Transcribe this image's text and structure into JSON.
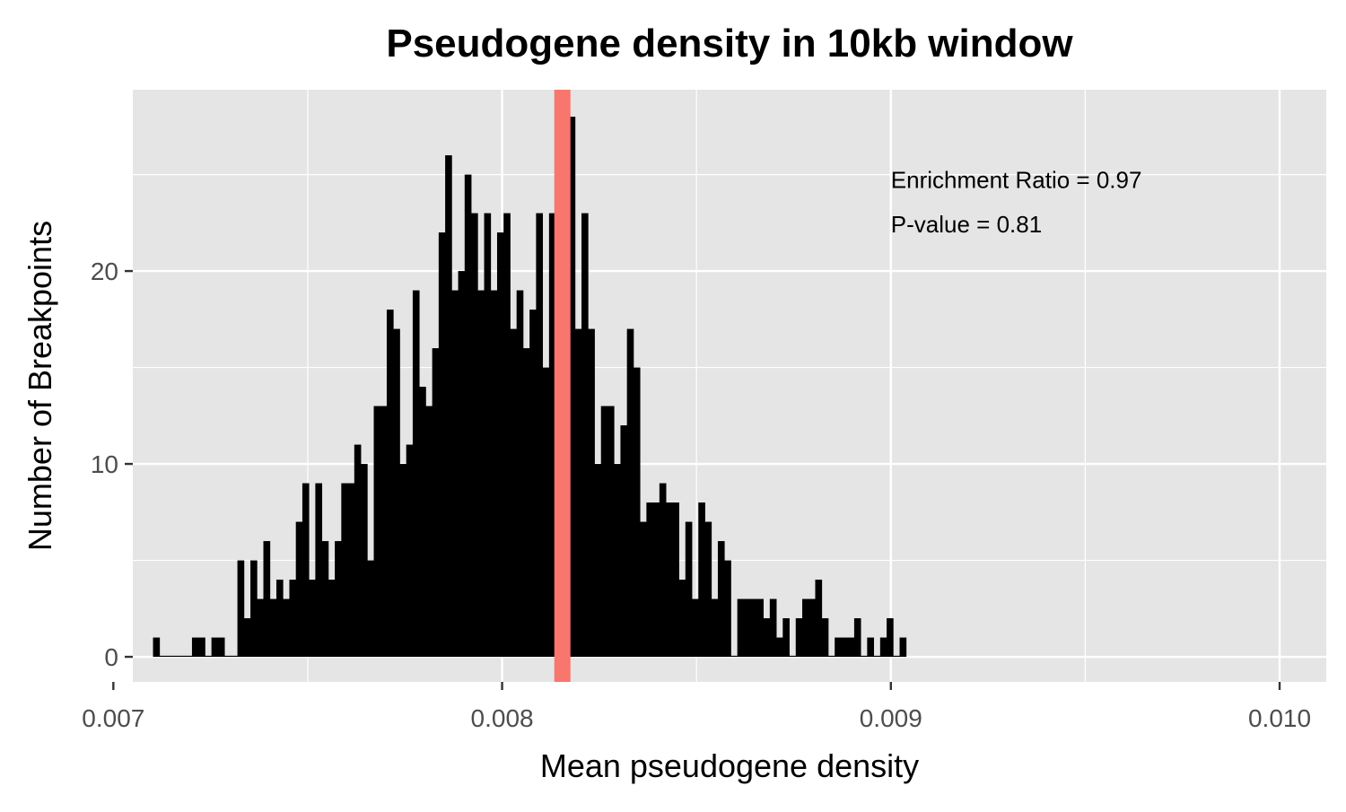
{
  "chart_data": {
    "type": "bar",
    "title": "Pseudogene density in 10kb window",
    "xlabel": "Mean pseudogene density",
    "ylabel": "Number of Breakpoints",
    "xlim": [
      0.00705,
      0.01012
    ],
    "ylim": [
      -1.3,
      29.4
    ],
    "x_ticks": [
      0.007,
      0.008,
      0.009,
      0.01
    ],
    "x_tick_labels": [
      "0.007",
      "0.008",
      "0.009",
      "0.010"
    ],
    "y_ticks": [
      0,
      10,
      20
    ],
    "y_tick_labels": [
      "0",
      "10",
      "20"
    ],
    "grid": true,
    "bin_start": 0.007102,
    "bin_width": 1.67e-05,
    "values": [
      1,
      0,
      0,
      0,
      0,
      0,
      1,
      1,
      0,
      1,
      1,
      0,
      0,
      5,
      2,
      5,
      3,
      6,
      3,
      4,
      3,
      4,
      7,
      9,
      4,
      9,
      6,
      4,
      6,
      9,
      9,
      11,
      10,
      5,
      13,
      13,
      18,
      17,
      10,
      11,
      19,
      14,
      13,
      16,
      22,
      26,
      19,
      20,
      25,
      23,
      19,
      23,
      19,
      22,
      23,
      17,
      19,
      16,
      18,
      23,
      15,
      23,
      18,
      21,
      28,
      17,
      23,
      17,
      10,
      13,
      13,
      10,
      12,
      17,
      15,
      7,
      8,
      8,
      9,
      8,
      8,
      4,
      7,
      3,
      8,
      7,
      3,
      6,
      5,
      0,
      3,
      3,
      3,
      3,
      2,
      3,
      1,
      2,
      0,
      2,
      3,
      3,
      4,
      2,
      0,
      1,
      1,
      1,
      2,
      0,
      1,
      0,
      1,
      2,
      0,
      1
    ]
  },
  "reference_line": {
    "x": 0.008155,
    "color": "#F8766D"
  },
  "annotations": [
    {
      "text": "Enrichment Ratio = 0.97",
      "x": 0.009,
      "y": 24.3
    },
    {
      "text": "P-value = 0.81",
      "x": 0.009,
      "y": 22.0
    }
  ],
  "colors": {
    "panel_background": "#E5E5E5",
    "grid": "#FFFFFF",
    "bar_fill": "#000000",
    "tick_label": "#4D4D4D",
    "text": "#000000"
  }
}
